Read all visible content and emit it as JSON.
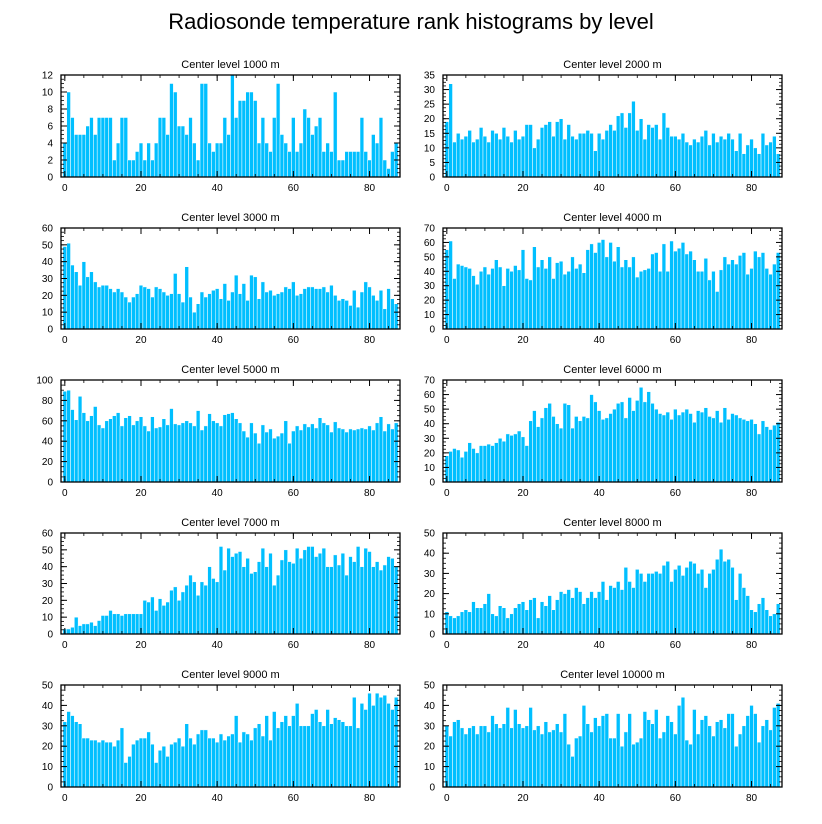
{
  "title": "Radiosonde temperature rank histograms by level",
  "colors": {
    "bar": "#00bfff",
    "bar_edge": "#ffffff",
    "axis": "#000000"
  },
  "chart_data": [
    {
      "type": "bar",
      "title": "Center level 1000 m",
      "x_start": 0,
      "ylim": [
        0,
        12
      ],
      "yticks": [
        0,
        2,
        4,
        6,
        8,
        10,
        12
      ],
      "xticks": [
        0,
        20,
        40,
        60,
        80
      ],
      "values": [
        4,
        10,
        7,
        5,
        5,
        5,
        6,
        7,
        5,
        7,
        7,
        7,
        7,
        2,
        4,
        7,
        7,
        2,
        2,
        3,
        4,
        2,
        4,
        2,
        4,
        7,
        7,
        5,
        11,
        10,
        6,
        6,
        5,
        7,
        4,
        2,
        11,
        11,
        4,
        3,
        4,
        4,
        7,
        5,
        12,
        7,
        9,
        9,
        10,
        10,
        9,
        4,
        7,
        4,
        3,
        7,
        11,
        5,
        4,
        3,
        7,
        3,
        4,
        8,
        7,
        5,
        6,
        7,
        3,
        4,
        3,
        10,
        2,
        2,
        3,
        3,
        3,
        3,
        7,
        3,
        2,
        5,
        4,
        7,
        2,
        1,
        3,
        4
      ]
    },
    {
      "type": "bar",
      "title": "Center level 2000 m",
      "x_start": 0,
      "ylim": [
        0,
        35
      ],
      "yticks": [
        0,
        5,
        10,
        15,
        20,
        25,
        30,
        35
      ],
      "xticks": [
        0,
        20,
        40,
        60,
        80
      ],
      "values": [
        19,
        32,
        12,
        15,
        13,
        14,
        16,
        12,
        13,
        17,
        14,
        12,
        16,
        15,
        13,
        17,
        14,
        12,
        16,
        13,
        14,
        18,
        18,
        10,
        13,
        17,
        18,
        19,
        14,
        19,
        20,
        13,
        18,
        14,
        13,
        15,
        15,
        16,
        15,
        9,
        15,
        13,
        16,
        18,
        16,
        21,
        22,
        17,
        22,
        26,
        16,
        20,
        13,
        18,
        17,
        18,
        13,
        22,
        17,
        14,
        14,
        13,
        15,
        12,
        11,
        13,
        12,
        14,
        16,
        11,
        15,
        12,
        14,
        13,
        15,
        13,
        9,
        15,
        8,
        11,
        13,
        10,
        8,
        15,
        11,
        12,
        14,
        8
      ]
    },
    {
      "type": "bar",
      "title": "Center level 3000 m",
      "x_start": 0,
      "ylim": [
        0,
        60
      ],
      "yticks": [
        0,
        10,
        20,
        30,
        40,
        50,
        60
      ],
      "xticks": [
        0,
        20,
        40,
        60,
        80
      ],
      "values": [
        49,
        51,
        38,
        34,
        26,
        40,
        31,
        34,
        28,
        25,
        26,
        26,
        24,
        22,
        24,
        22,
        19,
        16,
        19,
        21,
        26,
        25,
        24,
        19,
        25,
        24,
        22,
        20,
        21,
        33,
        21,
        16,
        37,
        19,
        10,
        15,
        22,
        19,
        21,
        23,
        24,
        18,
        27,
        17,
        22,
        32,
        21,
        27,
        17,
        32,
        31,
        18,
        28,
        22,
        23,
        20,
        21,
        22,
        25,
        24,
        28,
        20,
        21,
        24,
        25,
        25,
        24,
        24,
        25,
        22,
        26,
        20,
        17,
        18,
        17,
        14,
        23,
        13,
        22,
        28,
        25,
        20,
        17,
        23,
        12,
        24,
        18,
        15
      ]
    },
    {
      "type": "bar",
      "title": "Center level 4000 m",
      "x_start": 0,
      "ylim": [
        0,
        70
      ],
      "yticks": [
        0,
        10,
        20,
        30,
        40,
        50,
        60,
        70
      ],
      "xticks": [
        0,
        20,
        40,
        60,
        80
      ],
      "values": [
        55,
        61,
        35,
        45,
        44,
        43,
        42,
        37,
        31,
        40,
        43,
        38,
        42,
        48,
        43,
        30,
        42,
        40,
        44,
        41,
        55,
        35,
        34,
        57,
        43,
        48,
        42,
        50,
        35,
        46,
        47,
        38,
        40,
        50,
        42,
        45,
        39,
        55,
        59,
        53,
        60,
        62,
        50,
        60,
        47,
        57,
        43,
        48,
        43,
        50,
        36,
        40,
        41,
        42,
        52,
        53,
        40,
        59,
        40,
        61,
        54,
        56,
        60,
        52,
        54,
        48,
        40,
        40,
        49,
        34,
        40,
        26,
        41,
        50,
        45,
        48,
        45,
        51,
        53,
        38,
        42,
        54,
        50,
        53,
        42,
        38,
        45,
        53
      ]
    },
    {
      "type": "bar",
      "title": "Center level 5000 m",
      "x_start": 0,
      "ylim": [
        0,
        100
      ],
      "yticks": [
        0,
        20,
        40,
        60,
        80,
        100
      ],
      "xticks": [
        0,
        20,
        40,
        60,
        80
      ],
      "values": [
        89,
        90,
        71,
        61,
        84,
        68,
        60,
        65,
        74,
        56,
        53,
        60,
        62,
        65,
        68,
        55,
        63,
        65,
        56,
        60,
        64,
        55,
        50,
        64,
        53,
        54,
        62,
        56,
        72,
        57,
        56,
        58,
        60,
        58,
        55,
        70,
        51,
        55,
        67,
        60,
        58,
        55,
        66,
        67,
        68,
        62,
        58,
        50,
        44,
        58,
        48,
        38,
        56,
        49,
        52,
        43,
        45,
        48,
        60,
        38,
        50,
        55,
        51,
        57,
        54,
        57,
        53,
        63,
        58,
        56,
        49,
        59,
        53,
        52,
        49,
        52,
        51,
        52,
        53,
        52,
        55,
        51,
        58,
        64,
        50,
        57,
        52,
        58
      ]
    },
    {
      "type": "bar",
      "title": "Center level 6000 m",
      "x_start": 0,
      "ylim": [
        0,
        70
      ],
      "yticks": [
        0,
        10,
        20,
        30,
        40,
        50,
        60,
        70
      ],
      "xticks": [
        0,
        20,
        40,
        60,
        80
      ],
      "values": [
        18,
        21,
        23,
        22,
        17,
        21,
        27,
        23,
        20,
        25,
        25,
        26,
        25,
        27,
        30,
        28,
        33,
        32,
        33,
        35,
        31,
        25,
        42,
        49,
        38,
        44,
        51,
        54,
        45,
        40,
        37,
        54,
        53,
        37,
        45,
        42,
        45,
        44,
        60,
        55,
        49,
        43,
        44,
        47,
        50,
        54,
        55,
        44,
        58,
        49,
        56,
        65,
        55,
        62,
        54,
        50,
        47,
        46,
        48,
        43,
        50,
        46,
        48,
        50,
        47,
        41,
        49,
        48,
        51,
        45,
        44,
        49,
        41,
        51,
        43,
        47,
        46,
        44,
        43,
        42,
        43,
        40,
        33,
        42,
        38,
        36,
        39,
        41
      ]
    },
    {
      "type": "bar",
      "title": "Center level 7000 m",
      "x_start": 0,
      "ylim": [
        0,
        60
      ],
      "yticks": [
        0,
        10,
        20,
        30,
        40,
        50,
        60
      ],
      "xticks": [
        0,
        20,
        40,
        60,
        80
      ],
      "values": [
        3,
        3,
        4,
        10,
        5,
        6,
        6,
        7,
        5,
        8,
        11,
        11,
        14,
        12,
        12,
        11,
        12,
        12,
        12,
        12,
        12,
        20,
        19,
        22,
        14,
        21,
        17,
        19,
        26,
        28,
        20,
        25,
        29,
        35,
        31,
        23,
        31,
        29,
        40,
        33,
        31,
        52,
        38,
        51,
        46,
        48,
        49,
        40,
        45,
        36,
        37,
        43,
        51,
        40,
        48,
        29,
        35,
        44,
        50,
        43,
        42,
        51,
        45,
        50,
        52,
        52,
        46,
        48,
        51,
        40,
        40,
        47,
        41,
        48,
        35,
        46,
        43,
        52,
        40,
        51,
        49,
        40,
        43,
        38,
        41,
        46,
        45,
        40
      ]
    },
    {
      "type": "bar",
      "title": "Center level 8000 m",
      "x_start": 0,
      "ylim": [
        0,
        50
      ],
      "yticks": [
        0,
        10,
        20,
        30,
        40,
        50
      ],
      "xticks": [
        0,
        20,
        40,
        60,
        80
      ],
      "values": [
        11,
        9,
        8,
        9,
        11,
        12,
        11,
        16,
        13,
        13,
        15,
        20,
        10,
        9,
        14,
        13,
        8,
        10,
        13,
        15,
        16,
        12,
        17,
        18,
        8,
        16,
        14,
        19,
        12,
        17,
        21,
        20,
        22,
        18,
        23,
        21,
        15,
        18,
        21,
        18,
        21,
        26,
        17,
        24,
        23,
        26,
        22,
        33,
        26,
        23,
        32,
        30,
        26,
        30,
        30,
        31,
        30,
        34,
        36,
        26,
        32,
        34,
        29,
        33,
        36,
        35,
        30,
        32,
        23,
        30,
        32,
        37,
        42,
        36,
        37,
        33,
        17,
        30,
        23,
        19,
        12,
        11,
        15,
        18,
        12,
        9,
        10,
        15
      ]
    },
    {
      "type": "bar",
      "title": "Center level 9000 m",
      "x_start": 0,
      "ylim": [
        0,
        50
      ],
      "yticks": [
        0,
        10,
        20,
        30,
        40,
        50
      ],
      "xticks": [
        0,
        20,
        40,
        60,
        80
      ],
      "values": [
        32,
        37,
        35,
        32,
        31,
        24,
        24,
        23,
        23,
        22,
        23,
        22,
        22,
        20,
        23,
        29,
        12,
        15,
        21,
        23,
        24,
        24,
        27,
        21,
        12,
        18,
        20,
        15,
        21,
        22,
        24,
        20,
        31,
        24,
        21,
        26,
        28,
        28,
        24,
        24,
        22,
        26,
        23,
        25,
        26,
        35,
        22,
        27,
        26,
        23,
        29,
        31,
        25,
        35,
        23,
        37,
        29,
        32,
        35,
        30,
        35,
        41,
        30,
        30,
        30,
        36,
        38,
        32,
        30,
        38,
        31,
        34,
        33,
        32,
        30,
        30,
        44,
        29,
        41,
        38,
        46,
        40,
        46,
        44,
        45,
        41,
        38,
        44
      ]
    },
    {
      "type": "bar",
      "title": "Center level 10000 m",
      "x_start": 0,
      "ylim": [
        0,
        50
      ],
      "yticks": [
        0,
        10,
        20,
        30,
        40,
        50
      ],
      "xticks": [
        0,
        20,
        40,
        60,
        80
      ],
      "values": [
        30,
        25,
        32,
        33,
        29,
        26,
        29,
        30,
        26,
        30,
        30,
        27,
        35,
        31,
        29,
        31,
        39,
        29,
        38,
        31,
        29,
        30,
        39,
        28,
        30,
        26,
        32,
        27,
        28,
        31,
        27,
        36,
        21,
        15,
        24,
        25,
        40,
        31,
        27,
        34,
        30,
        35,
        36,
        24,
        24,
        36,
        20,
        27,
        36,
        21,
        22,
        24,
        37,
        33,
        31,
        38,
        24,
        27,
        35,
        32,
        26,
        40,
        44,
        23,
        21,
        38,
        26,
        33,
        35,
        30,
        25,
        32,
        33,
        29,
        36,
        36,
        20,
        26,
        30,
        35,
        40,
        36,
        22,
        30,
        33,
        28,
        39,
        41
      ]
    }
  ]
}
